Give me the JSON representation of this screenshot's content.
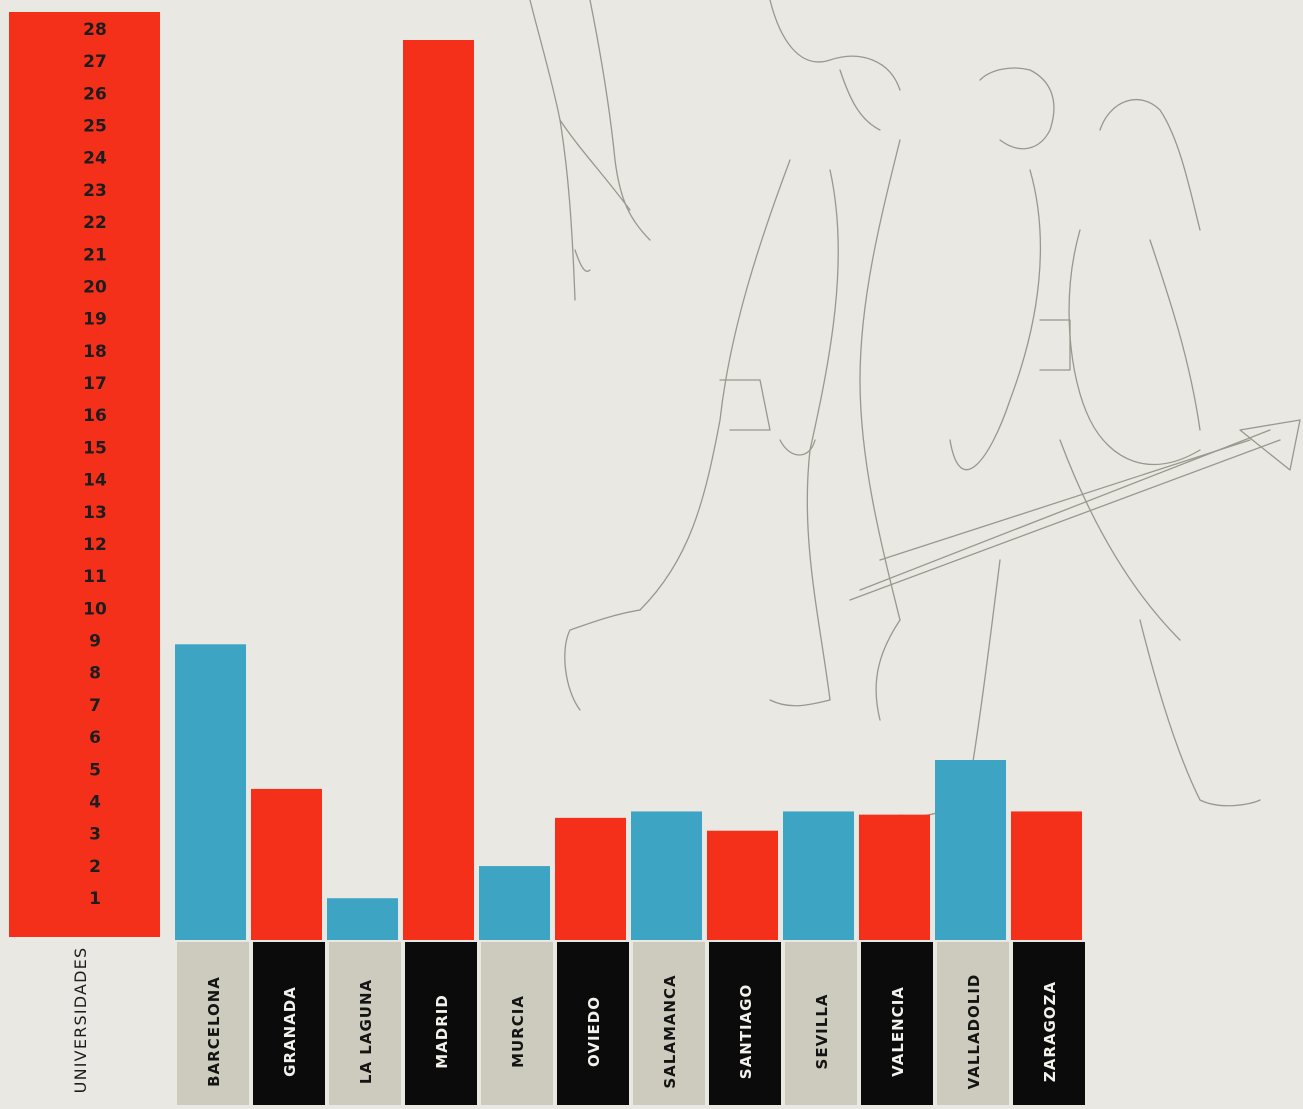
{
  "colors": {
    "background": "#e9e8e3",
    "red": "#f5301a",
    "blue": "#3ea4c4",
    "label_light_bg": "#cdcabe",
    "label_dark_bg": "#0b0b0b",
    "label_light_text": "#141414",
    "label_dark_text": "#f2f1ec",
    "tick_text": "#1d1d1d"
  },
  "chart_data": {
    "type": "bar",
    "xlabel": "UNIVERSIDADES",
    "ylabel": "",
    "ylim": [
      0,
      28
    ],
    "y_ticks": [
      "1",
      "2",
      "3",
      "4",
      "5",
      "6",
      "7",
      "8",
      "9",
      "10",
      "11",
      "12",
      "13",
      "14",
      "15",
      "16",
      "17",
      "18",
      "19",
      "20",
      "21",
      "22",
      "23",
      "24",
      "25",
      "26",
      "27",
      "28"
    ],
    "categories": [
      "BARCELONA",
      "GRANADA",
      "LA LAGUNA",
      "MADRID",
      "MURCIA",
      "OVIEDO",
      "SALAMANCA",
      "SANTIAGO",
      "SEVILLA",
      "VALENCIA",
      "VALLADOLID",
      "ZARAGOZA"
    ],
    "values": [
      9.2,
      4.7,
      1.3,
      28.0,
      2.3,
      3.8,
      4.0,
      3.4,
      4.0,
      3.9,
      5.6,
      4.0
    ],
    "bar_colors": [
      "blue",
      "red",
      "blue",
      "red",
      "blue",
      "red",
      "blue",
      "red",
      "blue",
      "red",
      "blue",
      "red"
    ],
    "label_styles": [
      "light",
      "dark",
      "light",
      "dark",
      "light",
      "dark",
      "light",
      "dark",
      "light",
      "dark",
      "light",
      "dark"
    ],
    "grid": false,
    "legend": "none",
    "illustration": "line sketch of walking students"
  }
}
